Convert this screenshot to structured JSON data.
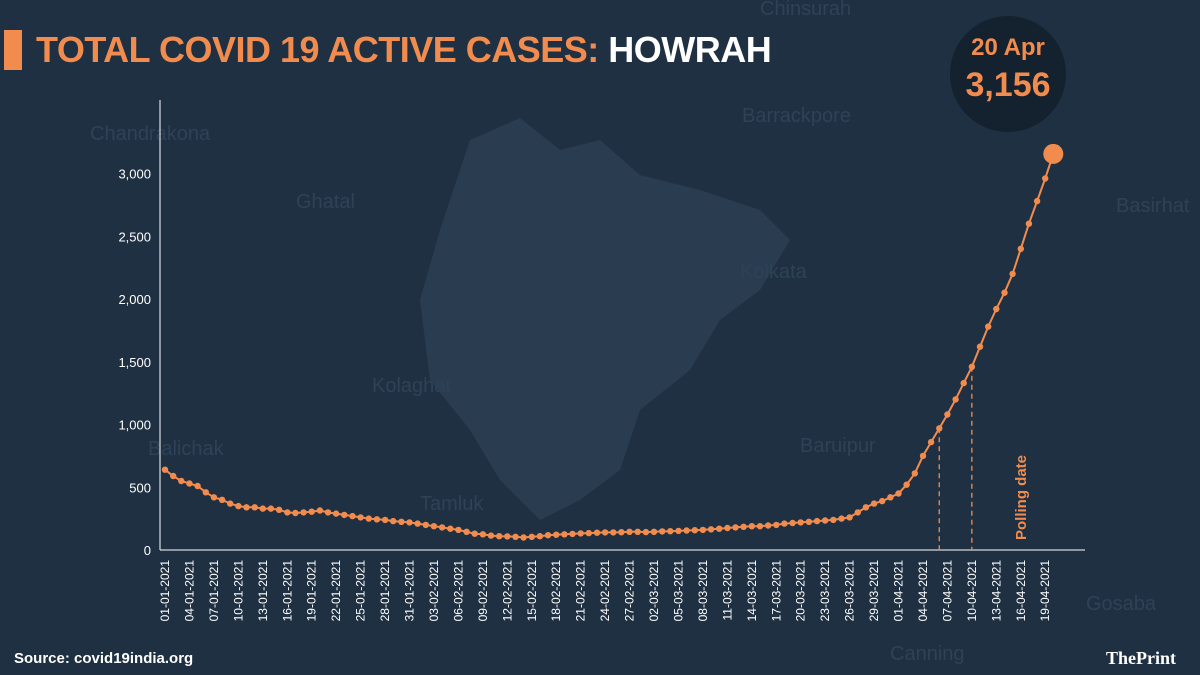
{
  "header": {
    "title_main": "TOTAL COVID 19 ACTIVE CASES:",
    "title_place": "HOWRAH"
  },
  "badge": {
    "date": "20 Apr",
    "value": "3,156"
  },
  "footer": {
    "source": "Source: covid19india.org",
    "brand": "ThePrint"
  },
  "annotation": {
    "label": "Polling date"
  },
  "background_map_labels": [
    "Chinsurah",
    "Chandrakona",
    "Barrackpore",
    "Ghatal",
    "Basirhat",
    "Kolkata",
    "Kolaghat",
    "Baruipur",
    "Tamluk",
    "Gosaba",
    "Balichak",
    "Canning"
  ],
  "colors": {
    "background": "#1f3042",
    "accent": "#f28c4e",
    "text": "#ffffff",
    "badge_bg": "#14212e"
  },
  "chart_data": {
    "type": "line",
    "title": "TOTAL COVID 19 ACTIVE CASES: HOWRAH",
    "ylim": [
      0,
      3200
    ],
    "yticks": [
      0,
      500,
      1000,
      1500,
      2000,
      2500,
      3000
    ],
    "ytick_labels": [
      "0",
      "500",
      "1,000",
      "1,500",
      "2,000",
      "2,500",
      "3,000"
    ],
    "xtick_labels": [
      "01-01-2021",
      "04-01-2021",
      "07-01-2021",
      "10-01-2021",
      "13-01-2021",
      "16-01-2021",
      "19-01-2021",
      "22-01-2021",
      "25-01-2021",
      "28-01-2021",
      "31-01-2021",
      "03-02-2021",
      "06-02-2021",
      "09-02-2021",
      "12-02-2021",
      "15-02-2021",
      "18-02-2021",
      "21-02-2021",
      "24-02-2021",
      "27-02-2021",
      "02-03-2021",
      "05-03-2021",
      "08-03-2021",
      "11-03-2021",
      "14-03-2021",
      "17-03-2021",
      "20-03-2021",
      "23-03-2021",
      "26-03-2021",
      "29-03-2021",
      "01-04-2021",
      "04-04-2021",
      "07-04-2021",
      "10-04-2021",
      "13-04-2021",
      "16-04-2021",
      "19-04-2021"
    ],
    "start_date": "2021-01-01",
    "dashed_markers": [
      "2021-04-06",
      "2021-04-10"
    ],
    "grid": false,
    "series": [
      {
        "values": [
          640,
          590,
          550,
          530,
          510,
          460,
          420,
          400,
          370,
          350,
          340,
          340,
          330,
          330,
          320,
          300,
          295,
          300,
          305,
          315,
          300,
          290,
          280,
          270,
          260,
          250,
          245,
          240,
          230,
          225,
          220,
          210,
          200,
          190,
          180,
          170,
          160,
          145,
          130,
          125,
          115,
          110,
          108,
          105,
          100,
          105,
          110,
          118,
          122,
          125,
          128,
          132,
          135,
          138,
          140,
          140,
          142,
          145,
          145,
          143,
          145,
          148,
          150,
          152,
          155,
          158,
          160,
          165,
          170,
          175,
          180,
          185,
          190,
          190,
          195,
          200,
          210,
          215,
          220,
          225,
          230,
          235,
          240,
          250,
          260,
          300,
          340,
          370,
          390,
          420,
          450,
          520,
          610,
          750,
          860,
          970,
          1080,
          1200,
          1330,
          1460,
          1620,
          1780,
          1920,
          2050,
          2200,
          2400,
          2600,
          2780,
          2960,
          3156
        ]
      }
    ]
  }
}
